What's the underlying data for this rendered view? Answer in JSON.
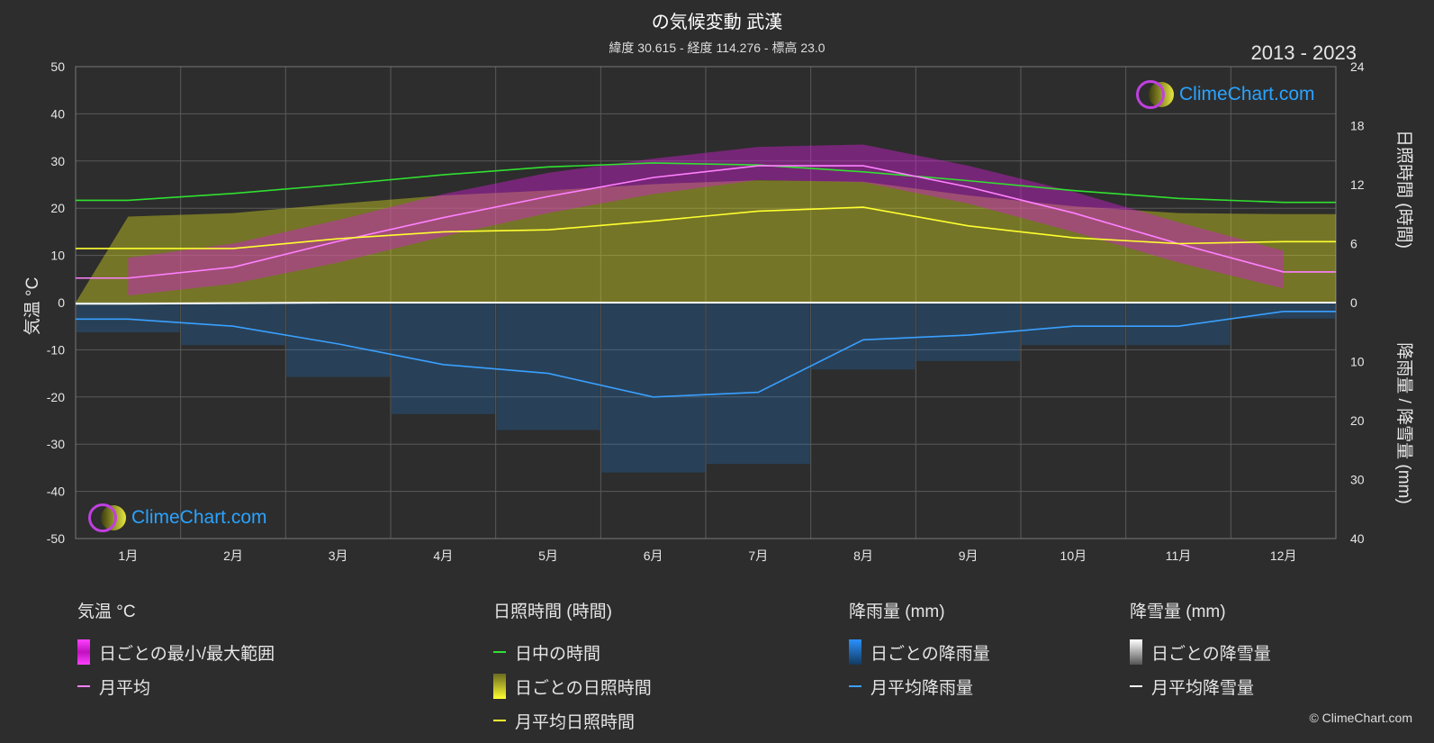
{
  "title": "の気候変動 武漢",
  "subtitle": "緯度 30.615 - 経度 114.276 - 標高 23.0",
  "years": "2013 - 2023",
  "copyright": "© ClimeChart.com",
  "logo_text": "ClimeChart.com",
  "axes": {
    "left_label": "気温 °C",
    "right_top_label": "日照時間 (時間)",
    "right_bottom_label": "降雨量 / 降雪量 (mm)",
    "left_ticks": [
      "50",
      "40",
      "30",
      "20",
      "10",
      "0",
      "-10",
      "-20",
      "-30",
      "-40",
      "-50"
    ],
    "right_top_ticks": [
      "24",
      "18",
      "12",
      "6",
      "0"
    ],
    "right_bottom_ticks": [
      "10",
      "20",
      "30",
      "40"
    ]
  },
  "legend": {
    "temp": {
      "head": "気温 °C",
      "range": "日ごとの最小/最大範囲",
      "avg": "月平均"
    },
    "sun": {
      "head": "日照時間 (時間)",
      "daylight": "日中の時間",
      "daily": "日ごとの日照時間",
      "avg": "月平均日照時間"
    },
    "rain": {
      "head": "降雨量 (mm)",
      "daily": "日ごとの降雨量",
      "avg": "月平均降雨量"
    },
    "snow": {
      "head": "降雪量 (mm)",
      "daily": "日ごとの降雪量",
      "avg": "月平均降雪量"
    }
  },
  "colors": {
    "temp_range": "#d020d0",
    "temp_avg": "#ff80ff",
    "daylight": "#30e030",
    "sunshine": "#d8d820",
    "sunshine_avg": "#ffff30",
    "rain": "#1e78c8",
    "rain_avg": "#3aa0ff",
    "snow": "#cccccc",
    "grid": "#5a5a5a"
  },
  "chart_data": {
    "type": "line",
    "categories": [
      "1月",
      "2月",
      "3月",
      "4月",
      "5月",
      "6月",
      "7月",
      "8月",
      "9月",
      "10月",
      "11月",
      "12月"
    ],
    "ylim_temp": [
      -50,
      50
    ],
    "ylim_sun": [
      0,
      24
    ],
    "ylim_precip": [
      0,
      40
    ],
    "series": [
      {
        "name": "日中の時間",
        "axis": "sun",
        "values": [
          10.4,
          11.1,
          12.0,
          13.0,
          13.8,
          14.2,
          14.0,
          13.3,
          12.4,
          11.4,
          10.6,
          10.2
        ]
      },
      {
        "name": "月平均",
        "axis": "temp",
        "values": [
          5.2,
          7.5,
          13.0,
          18.0,
          22.5,
          26.5,
          29.0,
          29.0,
          24.5,
          19.0,
          12.5,
          6.5
        ]
      },
      {
        "name": "月平均日照時間",
        "axis": "sun",
        "values": [
          5.5,
          5.5,
          6.5,
          7.2,
          7.4,
          8.3,
          9.3,
          9.7,
          7.8,
          6.6,
          6.0,
          6.2
        ]
      },
      {
        "name": "月平均降雨量",
        "axis": "precip",
        "values": [
          2.8,
          4.0,
          7.0,
          10.5,
          12.0,
          16.0,
          15.2,
          6.3,
          5.5,
          4.0,
          4.0,
          1.5
        ]
      },
      {
        "name": "月平均降雪量",
        "axis": "precip",
        "values": [
          0.2,
          0.1,
          0,
          0,
          0,
          0,
          0,
          0,
          0,
          0,
          0,
          0
        ]
      }
    ],
    "temp_range_band": {
      "min": [
        1.5,
        4.0,
        8.5,
        14.0,
        19.0,
        23.0,
        26.0,
        25.5,
        21.0,
        15.0,
        8.5,
        3.0
      ],
      "max": [
        9.5,
        12.5,
        17.5,
        23.0,
        27.5,
        30.5,
        33.0,
        33.5,
        29.0,
        23.5,
        17.0,
        11.0
      ]
    }
  }
}
